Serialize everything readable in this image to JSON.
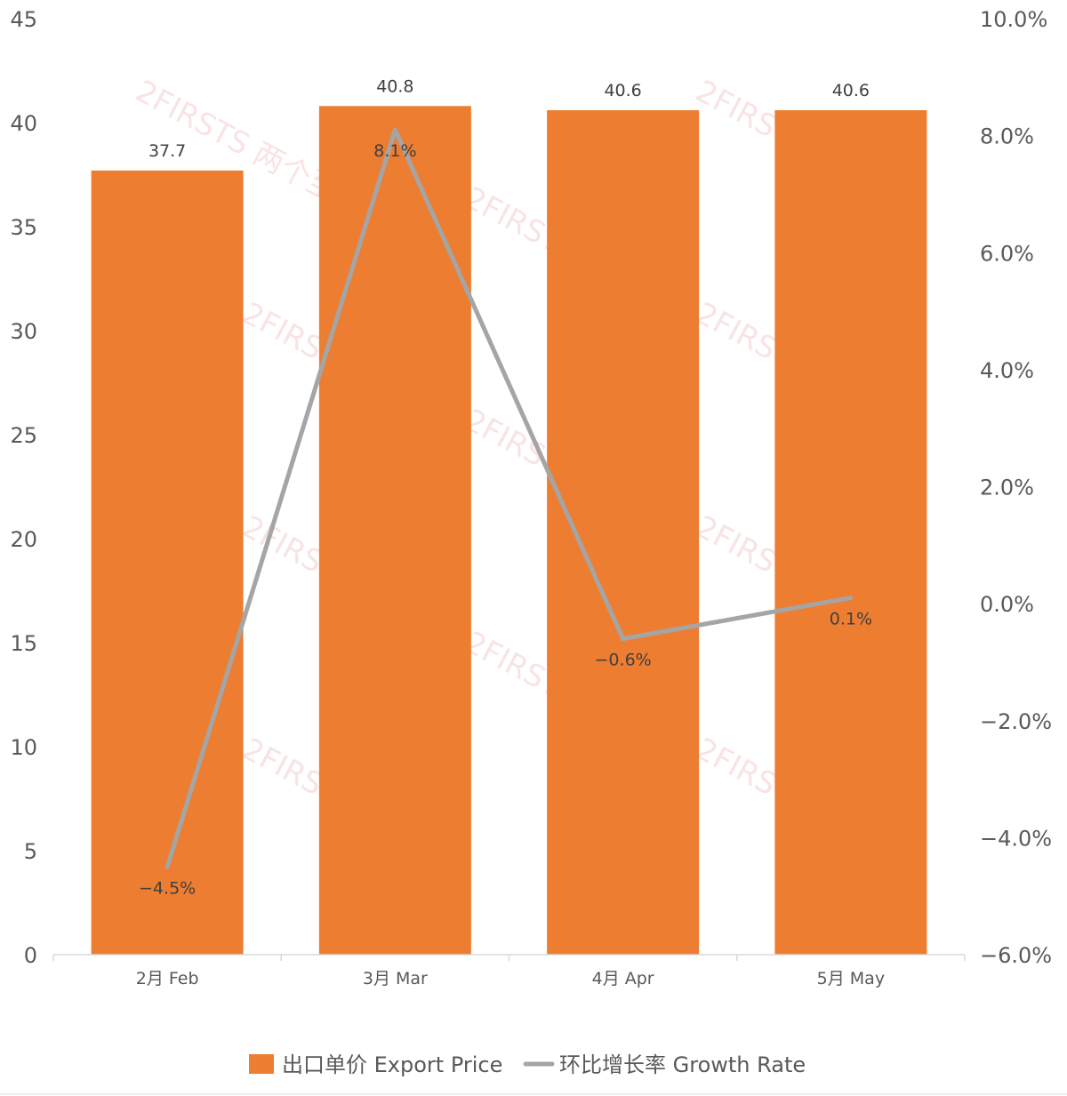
{
  "chart_data": {
    "type": "bar",
    "categories": [
      "2月 Feb",
      "3月 Mar",
      "4月 Apr",
      "5月 May"
    ],
    "series": [
      {
        "name": "出口单价 Export Price",
        "type": "bar",
        "axis": "left",
        "color": "#ED7D31",
        "values": [
          37.7,
          40.8,
          40.6,
          40.6
        ],
        "labels": [
          "37.7",
          "40.8",
          "40.6",
          "40.6"
        ]
      },
      {
        "name": "环比增长率 Growth Rate",
        "type": "line",
        "axis": "right",
        "color": "#A5A5A5",
        "values": [
          -4.5,
          8.1,
          -0.6,
          0.1
        ],
        "labels": [
          "−4.5%",
          "8.1%",
          "−0.6%",
          "0.1%"
        ]
      }
    ],
    "left_axis": {
      "ylim": [
        0,
        45
      ],
      "ticks": [
        0,
        5,
        10,
        15,
        20,
        25,
        30,
        35,
        40,
        45
      ],
      "tick_labels": [
        "0",
        "5",
        "10",
        "15",
        "20",
        "25",
        "30",
        "35",
        "40",
        "45"
      ]
    },
    "right_axis": {
      "ylim": [
        -6,
        10
      ],
      "ticks": [
        -6,
        -4,
        -2,
        0,
        2,
        4,
        6,
        8,
        10
      ],
      "tick_labels": [
        "−6.0%",
        "−4.0%",
        "−2.0%",
        "0.0%",
        "2.0%",
        "4.0%",
        "6.0%",
        "8.0%",
        "10.0%"
      ]
    },
    "grid": false,
    "legend_position": "bottom-center",
    "title": "",
    "xlabel": "",
    "ylabel": ""
  },
  "watermark": {
    "text": "2FIRSTS 两个至上"
  }
}
